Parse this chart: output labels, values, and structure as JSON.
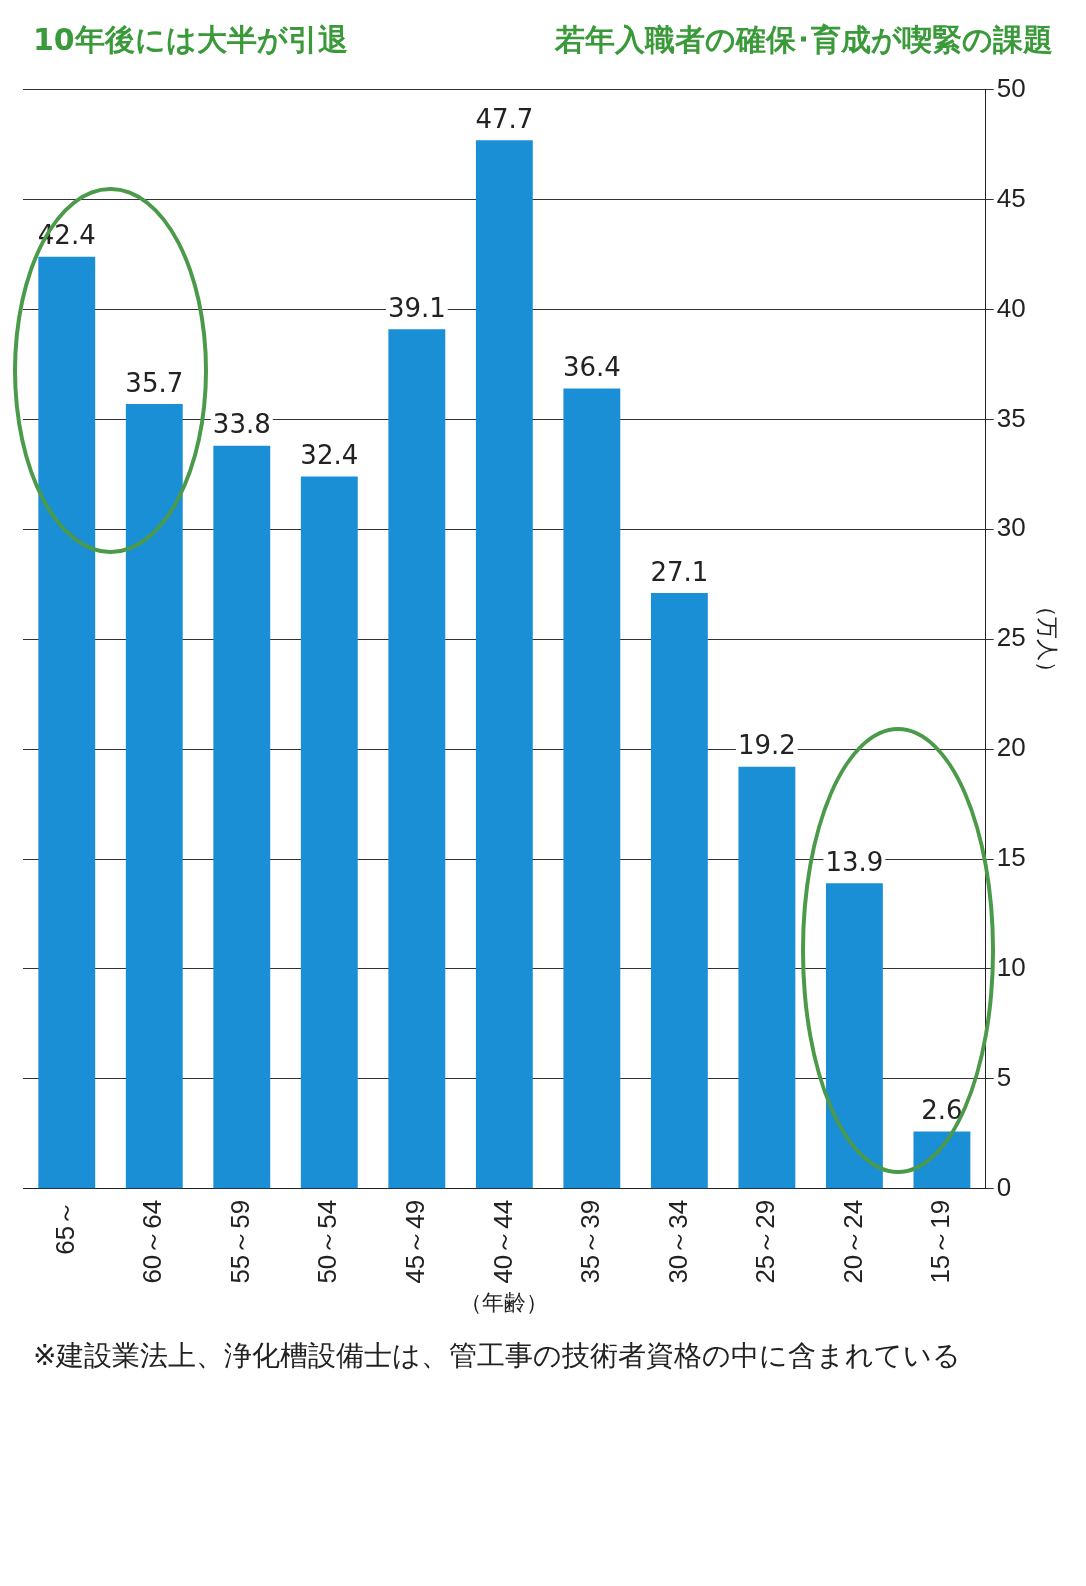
{
  "chart_data": {
    "type": "bar",
    "xlabel": "（年齢）",
    "ylabel": "（万人）",
    "categories": [
      "65～",
      "60～64",
      "55～59",
      "50～54",
      "45～49",
      "40～44",
      "35～39",
      "30～34",
      "25～29",
      "20～24",
      "15～19"
    ],
    "values": [
      42.4,
      35.7,
      33.8,
      32.4,
      39.1,
      47.7,
      36.4,
      27.1,
      19.2,
      13.9,
      2.6
    ],
    "color": "#1a8fd6",
    "ylim": [
      0,
      50
    ],
    "yticks": [
      0,
      5,
      10,
      15,
      20,
      25,
      30,
      35,
      40,
      45,
      50
    ],
    "grid": "y",
    "data_labels": true,
    "annotations": [
      "10年後には大半が引退",
      "若年入職者の確保･育成が喫緊の課題",
      "※建設業法上、浄化槽設備士は、管工事の技術者資格の中に含まれている"
    ]
  }
}
